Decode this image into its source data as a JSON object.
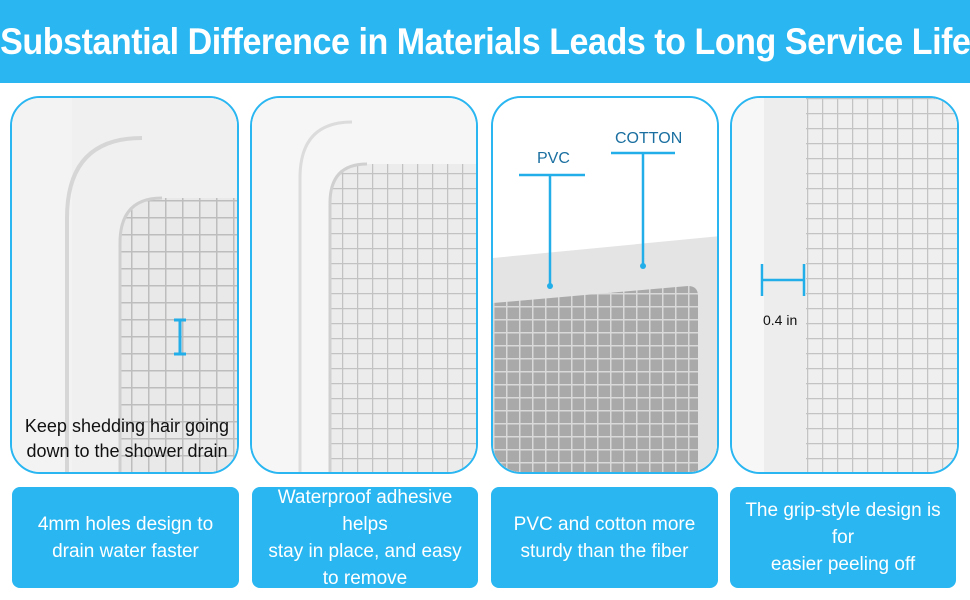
{
  "header": {
    "title": "Substantial Difference in Materials Leads to Long Service Life"
  },
  "panels": [
    {
      "overlay_text": "Keep shedding hair going\ndown to the shower drain",
      "caption": "4mm holes design to\ndrain water faster"
    },
    {
      "caption": "Waterproof adhesive helps\nstay in place, and easy\nto remove"
    },
    {
      "label_pvc": "PVC",
      "label_cotton": "COTTON",
      "caption": "PVC and cotton more\nsturdy than the fiber"
    },
    {
      "measure_label": "0.4 in",
      "caption": "The grip-style design is for\neasier peeling off"
    }
  ],
  "colors": {
    "accent": "#29b6f1",
    "callout_line": "#22aee8"
  }
}
